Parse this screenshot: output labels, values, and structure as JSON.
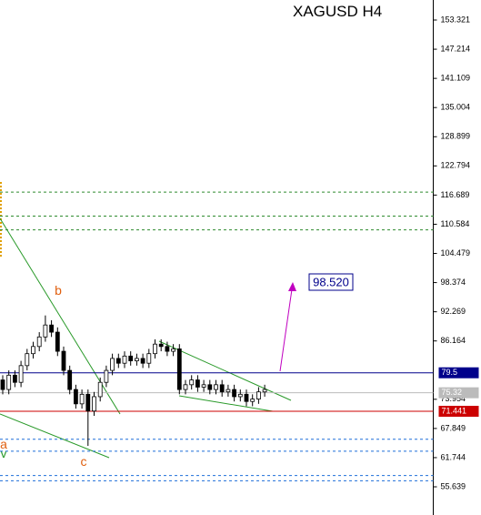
{
  "chart_data": {
    "type": "candlestick",
    "title": "XAGUSD H4",
    "ylim": [
      49.74,
      157.51
    ],
    "yticks": [
      153.321,
      147.214,
      141.109,
      135.004,
      128.899,
      122.794,
      116.689,
      110.584,
      104.479,
      98.374,
      92.269,
      86.164,
      73.954,
      67.849,
      61.744,
      55.639
    ],
    "ohlc": [
      [
        78.0,
        79.0,
        75.0,
        76.0
      ],
      [
        76.0,
        80.0,
        75.0,
        79.0
      ],
      [
        79.0,
        80.0,
        76.5,
        77.5
      ],
      [
        77.5,
        82.0,
        76.5,
        81.0
      ],
      [
        81.0,
        84.5,
        80.0,
        83.5
      ],
      [
        83.5,
        86.0,
        82.5,
        85.0
      ],
      [
        85.0,
        88.0,
        84.0,
        87.0
      ],
      [
        87.0,
        91.5,
        86.0,
        89.5
      ],
      [
        89.5,
        90.5,
        87.0,
        88.0
      ],
      [
        88.0,
        89.0,
        83.0,
        84.0
      ],
      [
        84.0,
        85.0,
        79.0,
        80.0
      ],
      [
        80.0,
        81.0,
        75.0,
        76.0
      ],
      [
        76.0,
        77.0,
        72.0,
        73.0
      ],
      [
        73.0,
        76.0,
        72.0,
        75.0
      ],
      [
        75.0,
        76.0,
        64.2,
        71.5
      ],
      [
        71.5,
        75.5,
        70.5,
        74.5
      ],
      [
        74.5,
        78.5,
        73.5,
        77.5
      ],
      [
        77.5,
        81.0,
        76.5,
        80.0
      ],
      [
        80.0,
        83.5,
        79.0,
        82.5
      ],
      [
        82.5,
        83.5,
        80.5,
        81.5
      ],
      [
        81.5,
        84.0,
        80.5,
        83.0
      ],
      [
        83.0,
        84.0,
        81.0,
        82.0
      ],
      [
        82.0,
        83.5,
        81.0,
        82.5
      ],
      [
        82.5,
        83.5,
        80.5,
        81.5
      ],
      [
        81.5,
        84.5,
        80.5,
        83.5
      ],
      [
        83.5,
        86.5,
        82.5,
        85.5
      ],
      [
        85.5,
        86.5,
        84.0,
        85.0
      ],
      [
        85.0,
        86.0,
        83.0,
        84.0
      ],
      [
        84.0,
        85.5,
        83.0,
        84.5
      ],
      [
        84.5,
        85.5,
        75.0,
        76.0
      ],
      [
        76.0,
        78.0,
        75.0,
        77.0
      ],
      [
        77.0,
        79.0,
        76.0,
        78.0
      ],
      [
        78.0,
        79.0,
        75.5,
        76.5
      ],
      [
        76.5,
        78.0,
        75.5,
        77.0
      ],
      [
        77.0,
        78.0,
        75.0,
        76.0
      ],
      [
        76.0,
        78.0,
        75.0,
        77.0
      ],
      [
        77.0,
        78.0,
        74.5,
        75.5
      ],
      [
        75.5,
        77.0,
        74.5,
        76.0
      ],
      [
        76.0,
        77.0,
        73.5,
        74.5
      ],
      [
        74.5,
        76.0,
        73.5,
        75.0
      ],
      [
        75.0,
        76.0,
        72.5,
        73.5
      ],
      [
        73.5,
        75.0,
        72.5,
        74.0
      ],
      [
        74.0,
        76.5,
        73.0,
        75.5
      ],
      [
        75.5,
        77.0,
        74.5,
        76.0
      ]
    ],
    "levels": [
      {
        "value": 79.5,
        "color": "#00008b"
      },
      {
        "value": 75.32,
        "color": "#bbbbbb"
      },
      {
        "value": 71.441,
        "color": "#cc0000"
      }
    ],
    "dashed_levels": [
      {
        "value": 117.3,
        "color": "#2e8b2e"
      },
      {
        "value": 112.3,
        "color": "#2e8b2e"
      },
      {
        "value": 109.4,
        "color": "#2e8b2e"
      },
      {
        "value": 65.6,
        "color": "#1e6fd9"
      },
      {
        "value": 63.1,
        "color": "#1e6fd9"
      },
      {
        "value": 58.0,
        "color": "#1e6fd9"
      },
      {
        "value": 56.9,
        "color": "#1e6fd9"
      }
    ],
    "target": "98.520",
    "wave_labels": [
      "b",
      "c",
      "a",
      "v"
    ]
  }
}
